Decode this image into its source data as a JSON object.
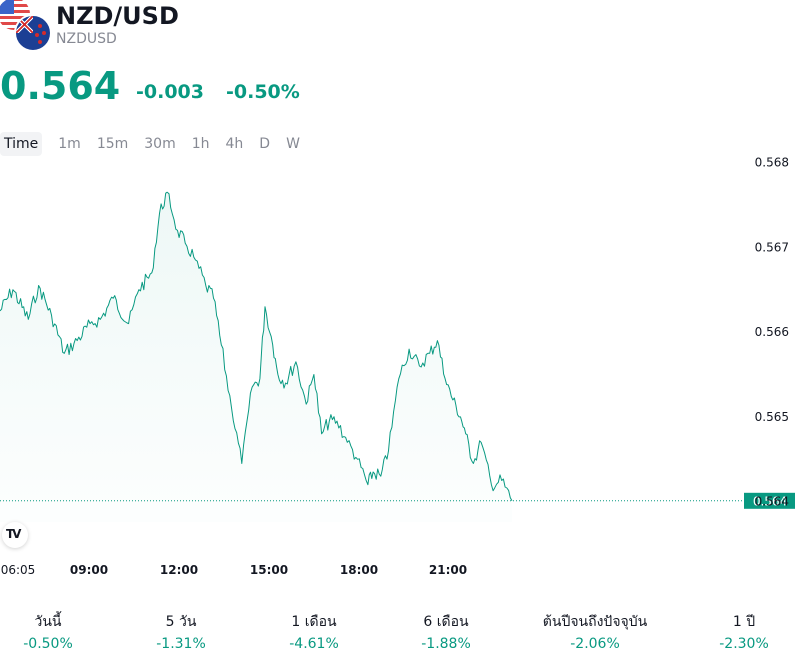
{
  "header": {
    "title": "NZD/USD",
    "ticker": "NZDUSD",
    "price": "0.564",
    "change": "-0.003",
    "change_percent": "-0.50%",
    "accent_color": "#089981"
  },
  "timeframes": [
    "Time",
    "1m",
    "15m",
    "30m",
    "1h",
    "4h",
    "D",
    "W"
  ],
  "active_timeframe": "Time",
  "chart_data": {
    "type": "area",
    "line_color": "#089981",
    "grid": false,
    "x_tick_labels": [
      "06:05",
      "09:00",
      "12:00",
      "15:00",
      "18:00",
      "21:00"
    ],
    "y_tick_labels": [
      "0.564",
      "0.565",
      "0.566",
      "0.567",
      "0.568"
    ],
    "ylim": [
      0.56376,
      0.56803
    ],
    "current_price_label": "0.564",
    "current_price": 0.56401,
    "x": [
      "06:05",
      "06:30",
      "07:00",
      "07:20",
      "07:45",
      "08:10",
      "08:35",
      "09:00",
      "09:20",
      "09:45",
      "10:15",
      "10:35",
      "11:00",
      "11:15",
      "11:30",
      "11:50",
      "12:05",
      "12:25",
      "12:45",
      "13:00",
      "13:15",
      "13:35",
      "13:55",
      "14:15",
      "14:30",
      "14:40",
      "14:55",
      "15:05",
      "15:20",
      "15:40",
      "16:00",
      "16:15",
      "16:30",
      "16:45",
      "17:00",
      "17:20",
      "17:40",
      "18:00",
      "18:10",
      "18:25",
      "18:40",
      "19:00",
      "19:20",
      "19:40",
      "20:00",
      "20:15",
      "20:30",
      "20:45",
      "21:00",
      "21:10",
      "21:25",
      "21:40",
      "22:00",
      "22:20",
      "22:40"
    ],
    "values": [
      0.56625,
      0.5665,
      0.56615,
      0.56655,
      0.5662,
      0.56575,
      0.5659,
      0.5661,
      0.56615,
      0.5664,
      0.5661,
      0.5665,
      0.5667,
      0.5674,
      0.56765,
      0.5672,
      0.56705,
      0.56685,
      0.56655,
      0.5664,
      0.56585,
      0.5651,
      0.56445,
      0.56535,
      0.56545,
      0.5663,
      0.56585,
      0.5655,
      0.5654,
      0.56565,
      0.56515,
      0.5655,
      0.5648,
      0.56495,
      0.56495,
      0.5647,
      0.5645,
      0.5642,
      0.56435,
      0.5643,
      0.5646,
      0.56545,
      0.5658,
      0.5656,
      0.56575,
      0.5659,
      0.56545,
      0.5652,
      0.565,
      0.5648,
      0.56445,
      0.5647,
      0.5642,
      0.56425,
      0.56401
    ]
  },
  "performance": [
    {
      "label": "วันนี้",
      "value": "-0.50%"
    },
    {
      "label": "5 วัน",
      "value": "-1.31%"
    },
    {
      "label": "1 เดือน",
      "value": "-4.61%"
    },
    {
      "label": "6 เดือน",
      "value": "-1.88%"
    },
    {
      "label": "ต้นปีจนถึงปัจจุบัน",
      "value": "-2.06%"
    },
    {
      "label": "1 ปี",
      "value": "-2.30%"
    }
  ]
}
